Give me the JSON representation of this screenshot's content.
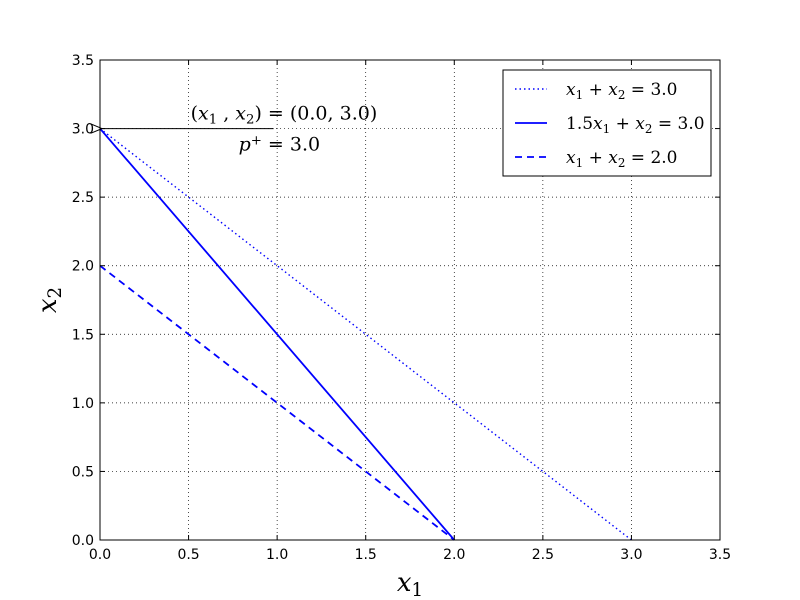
{
  "chart_data": {
    "type": "line",
    "xlim": [
      0,
      3.5
    ],
    "ylim": [
      0,
      3.5
    ],
    "xticks": [
      "0.0",
      "0.5",
      "1.0",
      "1.5",
      "2.0",
      "2.5",
      "3.0",
      "3.5"
    ],
    "yticks": [
      "0.0",
      "0.5",
      "1.0",
      "1.5",
      "2.0",
      "2.5",
      "3.0",
      "3.5"
    ],
    "xlabel": "x₁",
    "ylabel": "x₂",
    "grid": true,
    "legend_position": "top-right",
    "series": [
      {
        "name": "x₁ + x₂ = 3.0",
        "x": [
          0,
          3
        ],
        "y": [
          3,
          0
        ],
        "style": "dotted",
        "color": "#0000ff"
      },
      {
        "name": "1.5x₁ + x₂ = 3.0",
        "x": [
          0,
          2
        ],
        "y": [
          3,
          0
        ],
        "style": "solid",
        "color": "#0000ff"
      },
      {
        "name": "x₁ + x₂ = 2.0",
        "x": [
          0,
          2
        ],
        "y": [
          2,
          0
        ],
        "style": "dashed",
        "color": "#0000ff"
      }
    ],
    "annotation": {
      "line1": "(x₁ , x₂) = (0.0, 3.0)",
      "line2": "p⁺ = 3.0",
      "point": [
        0,
        3
      ],
      "text_anchor": [
        0.5,
        3.0
      ]
    }
  }
}
